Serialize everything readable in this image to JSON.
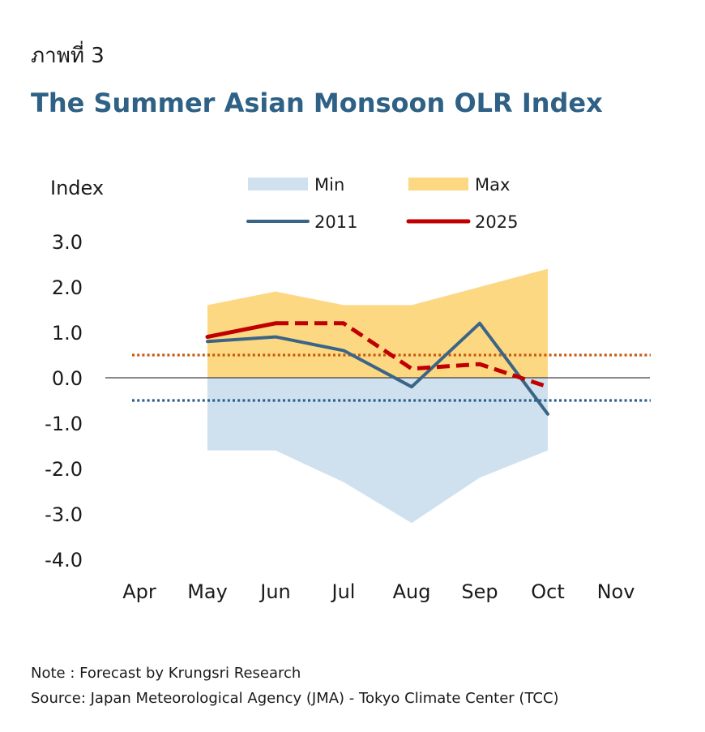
{
  "figure_label": "ภาพที่ 3",
  "note": "Note : Forecast by Krungsri Research",
  "source": "Source: Japan Meteorological Agency (JMA) - Tokyo Climate Center (TCC)",
  "colors": {
    "min_fill": "#cfe1ee",
    "max_fill": "#fdd882",
    "line_2011": "#3a6587",
    "line_2025": "#c00000",
    "upper_threshold": "#c55a11",
    "lower_threshold": "#2e5f8a",
    "zero_line": "#404040"
  },
  "chart_data": {
    "type": "line",
    "title": "The Summer Asian Monsoon OLR Index",
    "ylabel": "Index",
    "xlabel": "",
    "categories": [
      "Apr",
      "May",
      "Jun",
      "Jul",
      "Aug",
      "Sep",
      "Oct",
      "Nov"
    ],
    "ylim": [
      -4.0,
      3.0
    ],
    "yticks": [
      "3.0",
      "2.0",
      "1.0",
      "0.0",
      "-1.0",
      "-2.0",
      "-3.0",
      "-4.0"
    ],
    "legend_position": "top",
    "series": [
      {
        "name": "Min",
        "kind": "area",
        "values": [
          null,
          -1.6,
          -1.6,
          -2.3,
          -3.2,
          -2.2,
          -1.6,
          null
        ]
      },
      {
        "name": "Max",
        "kind": "area",
        "values": [
          null,
          1.6,
          1.9,
          1.6,
          1.6,
          2.0,
          2.4,
          null
        ]
      },
      {
        "name": "2011",
        "kind": "line",
        "values": [
          null,
          0.8,
          0.9,
          0.6,
          -0.2,
          1.2,
          -0.8,
          null
        ]
      },
      {
        "name": "2025",
        "kind": "dashed-line",
        "values": [
          null,
          0.9,
          1.2,
          1.2,
          0.2,
          0.3,
          -0.2,
          null
        ]
      }
    ],
    "thresholds": [
      {
        "name": "upper",
        "value": 0.5
      },
      {
        "name": "lower",
        "value": -0.5
      }
    ]
  }
}
